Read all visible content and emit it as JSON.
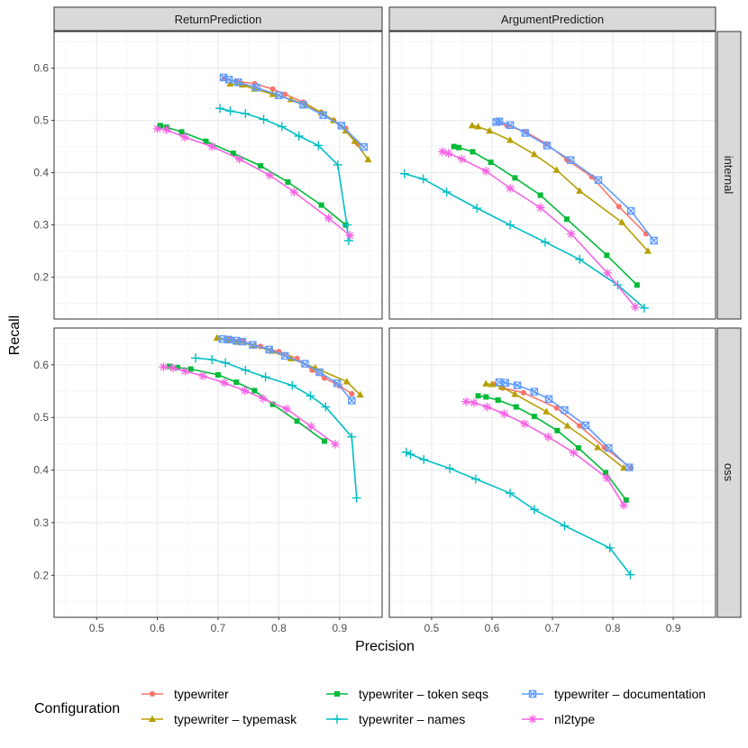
{
  "chart_data": {
    "type": "line",
    "xlabel": "Precision",
    "ylabel": "Recall",
    "xlim": [
      0.43,
      0.97
    ],
    "ylim": [
      0.12,
      0.67
    ],
    "x_ticks": [
      0.5,
      0.6,
      0.7,
      0.8,
      0.9
    ],
    "x_tick_labels": [
      "0.5",
      "0.6",
      "0.7",
      "0.8",
      "0.9"
    ],
    "y_ticks": [
      0.2,
      0.3,
      0.4,
      0.5,
      0.6
    ],
    "y_tick_labels": [
      "0.2",
      "0.3",
      "0.4",
      "0.5",
      "0.6"
    ],
    "grid": true,
    "facet_columns": [
      "ReturnPrediction",
      "ArgumentPrediction"
    ],
    "facet_rows": [
      "internal",
      "oss"
    ],
    "legend": {
      "title": "Configuration",
      "position": "bottom",
      "entries": [
        {
          "name": "typewriter",
          "color": "#F8766D",
          "shape": "circle"
        },
        {
          "name": "typewriter – typemask",
          "color": "#B79F00",
          "shape": "triangle"
        },
        {
          "name": "typewriter – token seqs",
          "color": "#00BA38",
          "shape": "square"
        },
        {
          "name": "typewriter – names",
          "color": "#00BFC4",
          "shape": "plus"
        },
        {
          "name": "typewriter – documentation",
          "color": "#619CFF",
          "shape": "boxed-x"
        },
        {
          "name": "nl2type",
          "color": "#F564E3",
          "shape": "star"
        }
      ]
    },
    "panels": [
      {
        "column": "ReturnPrediction",
        "row": "internal",
        "series": [
          {
            "name": "typewriter",
            "x": [
              0.71,
              0.73,
              0.76,
              0.79,
              0.81,
              0.84,
              0.87,
              0.89,
              0.91,
              0.93
            ],
            "y": [
              0.58,
              0.575,
              0.57,
              0.56,
              0.55,
              0.535,
              0.515,
              0.5,
              0.485,
              0.455
            ]
          },
          {
            "name": "typewriter – typemask",
            "x": [
              0.72,
              0.74,
              0.76,
              0.79,
              0.82,
              0.845,
              0.87,
              0.89,
              0.91,
              0.925,
              0.947
            ],
            "y": [
              0.57,
              0.568,
              0.56,
              0.55,
              0.54,
              0.53,
              0.515,
              0.5,
              0.48,
              0.46,
              0.425
            ]
          },
          {
            "name": "typewriter – token seqs",
            "x": [
              0.605,
              0.615,
              0.64,
              0.68,
              0.725,
              0.77,
              0.815,
              0.87,
              0.91
            ],
            "y": [
              0.49,
              0.487,
              0.478,
              0.46,
              0.437,
              0.413,
              0.382,
              0.338,
              0.3
            ]
          },
          {
            "name": "typewriter – names",
            "x": [
              0.703,
              0.72,
              0.745,
              0.775,
              0.805,
              0.833,
              0.865,
              0.897,
              0.912,
              0.915
            ],
            "y": [
              0.523,
              0.518,
              0.513,
              0.502,
              0.488,
              0.47,
              0.452,
              0.415,
              0.3,
              0.27
            ]
          },
          {
            "name": "typewriter – documentation",
            "x": [
              0.709,
              0.718,
              0.733,
              0.763,
              0.8,
              0.84,
              0.873,
              0.903,
              0.94
            ],
            "y": [
              0.582,
              0.578,
              0.573,
              0.563,
              0.548,
              0.53,
              0.51,
              0.49,
              0.449
            ]
          },
          {
            "name": "nl2type",
            "x": [
              0.6,
              0.615,
              0.645,
              0.69,
              0.735,
              0.785,
              0.825,
              0.882,
              0.917
            ],
            "y": [
              0.484,
              0.482,
              0.468,
              0.45,
              0.426,
              0.395,
              0.363,
              0.313,
              0.28
            ]
          }
        ]
      },
      {
        "column": "ArgumentPrediction",
        "row": "internal",
        "series": [
          {
            "name": "typewriter",
            "x": [
              0.612,
              0.625,
              0.656,
              0.69,
              0.724,
              0.765,
              0.81,
              0.855
            ],
            "y": [
              0.495,
              0.49,
              0.478,
              0.455,
              0.425,
              0.392,
              0.335,
              0.283
            ]
          },
          {
            "name": "typewriter – typemask",
            "x": [
              0.567,
              0.577,
              0.596,
              0.63,
              0.67,
              0.707,
              0.745,
              0.815,
              0.858
            ],
            "y": [
              0.49,
              0.488,
              0.48,
              0.462,
              0.435,
              0.405,
              0.365,
              0.305,
              0.25
            ]
          },
          {
            "name": "typewriter – token seqs",
            "x": [
              0.537,
              0.545,
              0.568,
              0.598,
              0.638,
              0.68,
              0.724,
              0.79,
              0.84
            ],
            "y": [
              0.45,
              0.448,
              0.44,
              0.42,
              0.39,
              0.357,
              0.311,
              0.242,
              0.185
            ]
          },
          {
            "name": "typewriter – names",
            "x": [
              0.455,
              0.486,
              0.525,
              0.575,
              0.63,
              0.688,
              0.745,
              0.808,
              0.852
            ],
            "y": [
              0.398,
              0.388,
              0.363,
              0.332,
              0.3,
              0.267,
              0.234,
              0.185,
              0.141
            ]
          },
          {
            "name": "typewriter – documentation",
            "x": [
              0.607,
              0.612,
              0.63,
              0.655,
              0.691,
              0.73,
              0.776,
              0.83,
              0.868
            ],
            "y": [
              0.497,
              0.498,
              0.491,
              0.476,
              0.452,
              0.424,
              0.386,
              0.327,
              0.27
            ]
          },
          {
            "name": "nl2type",
            "x": [
              0.518,
              0.528,
              0.55,
              0.59,
              0.63,
              0.68,
              0.731,
              0.791,
              0.837
            ],
            "y": [
              0.44,
              0.437,
              0.426,
              0.403,
              0.37,
              0.333,
              0.283,
              0.208,
              0.143
            ]
          }
        ]
      },
      {
        "column": "ReturnPrediction",
        "row": "oss",
        "series": [
          {
            "name": "typewriter",
            "x": [
              0.72,
              0.74,
              0.77,
              0.8,
              0.83,
              0.855,
              0.875,
              0.9,
              0.92
            ],
            "y": [
              0.65,
              0.645,
              0.635,
              0.625,
              0.612,
              0.59,
              0.575,
              0.56,
              0.545
            ]
          },
          {
            "name": "typewriter – typemask",
            "x": [
              0.698,
              0.715,
              0.732,
              0.76,
              0.788,
              0.82,
              0.86,
              0.912,
              0.934
            ],
            "y": [
              0.651,
              0.648,
              0.643,
              0.637,
              0.626,
              0.612,
              0.594,
              0.568,
              0.543
            ]
          },
          {
            "name": "typewriter – token seqs",
            "x": [
              0.62,
              0.633,
              0.655,
              0.7,
              0.73,
              0.76,
              0.79,
              0.83,
              0.875
            ],
            "y": [
              0.597,
              0.595,
              0.592,
              0.581,
              0.567,
              0.551,
              0.525,
              0.493,
              0.455
            ]
          },
          {
            "name": "typewriter – names",
            "x": [
              0.663,
              0.69,
              0.712,
              0.745,
              0.778,
              0.822,
              0.852,
              0.877,
              0.92,
              0.928
            ],
            "y": [
              0.613,
              0.61,
              0.604,
              0.59,
              0.577,
              0.561,
              0.541,
              0.52,
              0.463,
              0.347
            ]
          },
          {
            "name": "typewriter – documentation",
            "x": [
              0.707,
              0.717,
              0.73,
              0.74,
              0.757,
              0.784,
              0.81,
              0.843,
              0.867,
              0.896,
              0.92
            ],
            "y": [
              0.649,
              0.648,
              0.646,
              0.644,
              0.638,
              0.629,
              0.617,
              0.602,
              0.586,
              0.565,
              0.532
            ]
          },
          {
            "name": "nl2type",
            "x": [
              0.61,
              0.626,
              0.646,
              0.675,
              0.71,
              0.744,
              0.774,
              0.813,
              0.853,
              0.893
            ],
            "y": [
              0.596,
              0.594,
              0.588,
              0.579,
              0.566,
              0.551,
              0.536,
              0.516,
              0.483,
              0.449
            ]
          }
        ]
      },
      {
        "column": "ArgumentPrediction",
        "row": "oss",
        "series": [
          {
            "name": "typewriter",
            "x": [
              0.604,
              0.618,
              0.652,
              0.707,
              0.745,
              0.786,
              0.83
            ],
            "y": [
              0.563,
              0.556,
              0.547,
              0.518,
              0.484,
              0.443,
              0.404
            ]
          },
          {
            "name": "typewriter – typemask",
            "x": [
              0.59,
              0.6,
              0.616,
              0.638,
              0.69,
              0.725,
              0.775,
              0.818
            ],
            "y": [
              0.564,
              0.563,
              0.558,
              0.544,
              0.511,
              0.484,
              0.443,
              0.404
            ]
          },
          {
            "name": "typewriter – token seqs",
            "x": [
              0.577,
              0.59,
              0.61,
              0.64,
              0.67,
              0.708,
              0.743,
              0.788,
              0.822
            ],
            "y": [
              0.541,
              0.539,
              0.533,
              0.52,
              0.502,
              0.475,
              0.442,
              0.395,
              0.343
            ]
          },
          {
            "name": "typewriter – names",
            "x": [
              0.458,
              0.465,
              0.487,
              0.53,
              0.573,
              0.63,
              0.67,
              0.72,
              0.795,
              0.829
            ],
            "y": [
              0.434,
              0.43,
              0.42,
              0.403,
              0.383,
              0.356,
              0.325,
              0.294,
              0.252,
              0.201
            ]
          },
          {
            "name": "typewriter – documentation",
            "x": [
              0.612,
              0.622,
              0.642,
              0.67,
              0.694,
              0.72,
              0.755,
              0.793,
              0.827
            ],
            "y": [
              0.567,
              0.566,
              0.561,
              0.549,
              0.535,
              0.514,
              0.485,
              0.442,
              0.405
            ]
          },
          {
            "name": "nl2type",
            "x": [
              0.557,
              0.57,
              0.592,
              0.62,
              0.654,
              0.693,
              0.735,
              0.79,
              0.818
            ],
            "y": [
              0.53,
              0.528,
              0.52,
              0.507,
              0.488,
              0.463,
              0.433,
              0.385,
              0.333
            ]
          }
        ]
      }
    ]
  }
}
